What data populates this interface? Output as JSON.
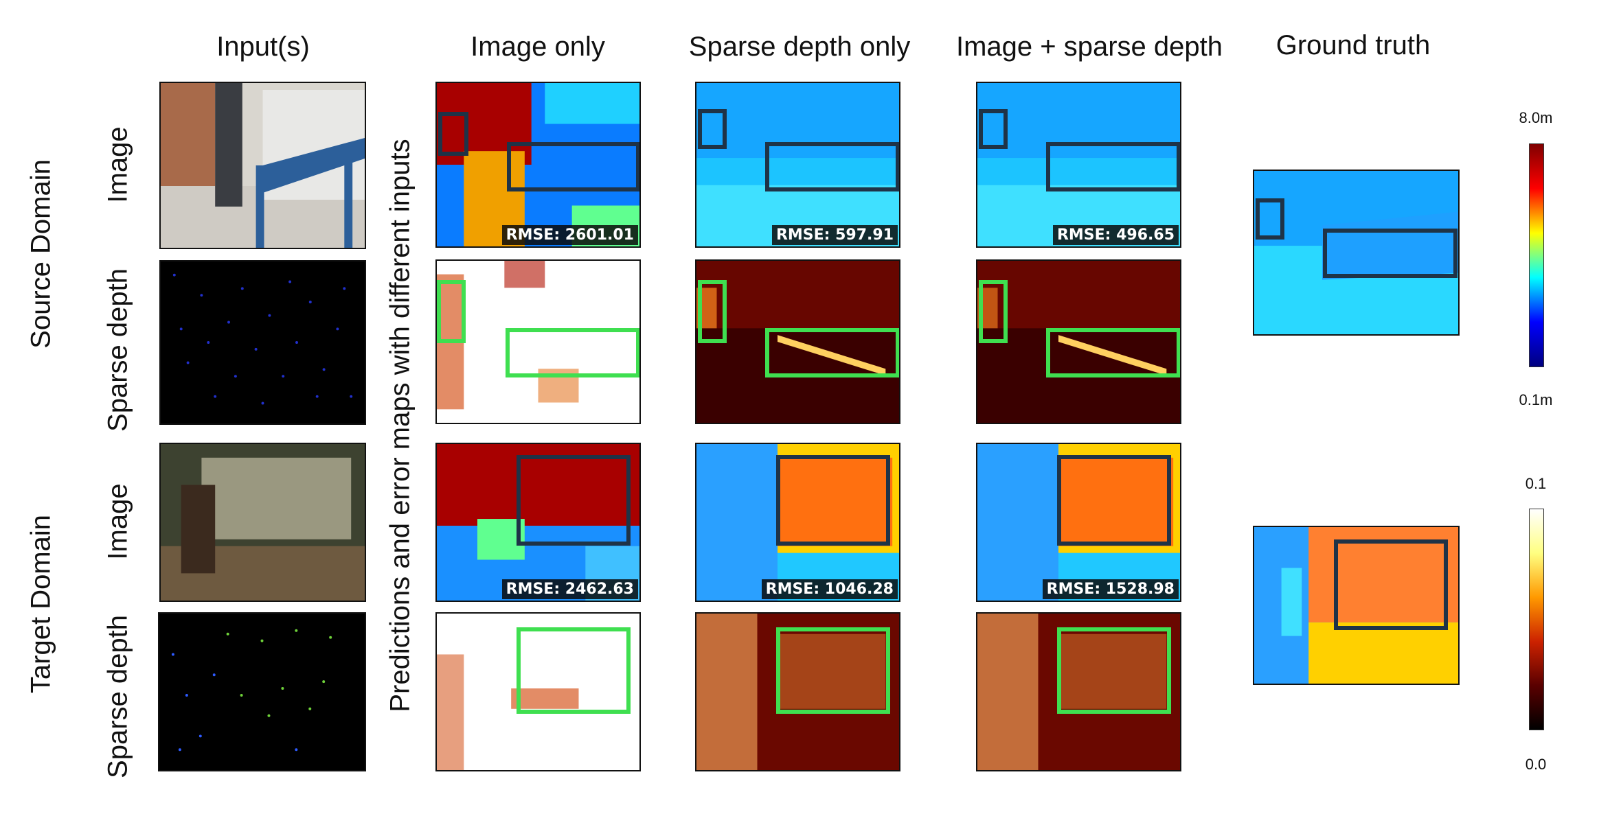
{
  "headers": {
    "inputs": "Input(s)",
    "image_only": "Image only",
    "sparse_only": "Sparse depth only",
    "image_sparse": "Image + sparse depth",
    "ground_truth": "Ground truth"
  },
  "domains": {
    "source": "Source Domain",
    "target": "Target Domain"
  },
  "row_labels": {
    "image_1": "Image",
    "sparse_1": "Sparse depth",
    "image_2": "Image",
    "sparse_2": "Sparse depth"
  },
  "center_label": "Predictions and error maps with different inputs",
  "rmse": {
    "src_image_only": "RMSE: 2601.01",
    "src_sparse_only": "RMSE: 597.91",
    "src_image_sparse": "RMSE: 496.65",
    "tgt_image_only": "RMSE: 2462.63",
    "tgt_sparse_only": "RMSE: 1046.28",
    "tgt_image_sparse": "RMSE: 1528.98"
  },
  "colorbars": {
    "depth": {
      "max": "8.0m",
      "min": "0.1m",
      "colors": [
        "#7f0000",
        "#ff0000",
        "#ffff00",
        "#00ffff",
        "#0000ff",
        "#00007f"
      ]
    },
    "error": {
      "max": "0.1",
      "min": "0.0",
      "colors": [
        "#ffffff",
        "#ffff80",
        "#ff9900",
        "#cc2200",
        "#5a0000",
        "#000000"
      ]
    }
  },
  "box_colors": {
    "prediction": "#1f3347",
    "error": "#3fdf50"
  }
}
